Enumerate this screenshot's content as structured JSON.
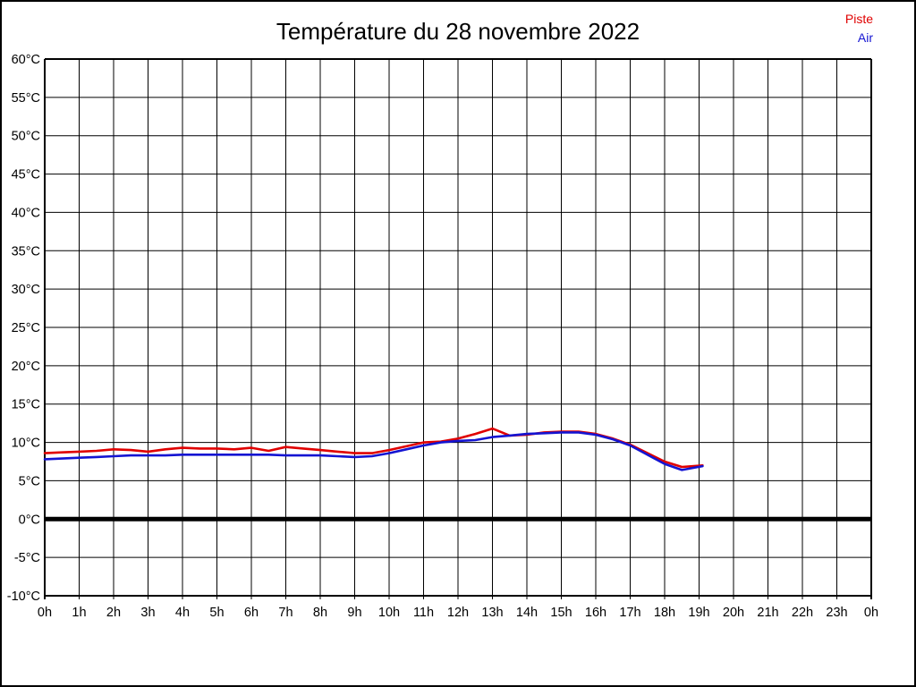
{
  "title": "Température du 28 novembre 2022",
  "legend": [
    {
      "label": "Piste",
      "color": "#e00000"
    },
    {
      "label": "Air",
      "color": "#1414d2"
    }
  ],
  "colors": {
    "background": "#ffffff",
    "grid": "#000000",
    "zero_line": "#000000",
    "text": "#000000"
  },
  "chart_data": {
    "type": "line",
    "title": "Température du 28 novembre 2022",
    "xlabel": "",
    "ylabel": "",
    "xlim": [
      0,
      24
    ],
    "ylim": [
      -10,
      60
    ],
    "grid": true,
    "zero_line_value": 0,
    "legend_position": "top-right",
    "x_ticks": [
      {
        "v": 0,
        "label": "0h"
      },
      {
        "v": 1,
        "label": "1h"
      },
      {
        "v": 2,
        "label": "2h"
      },
      {
        "v": 3,
        "label": "3h"
      },
      {
        "v": 4,
        "label": "4h"
      },
      {
        "v": 5,
        "label": "5h"
      },
      {
        "v": 6,
        "label": "6h"
      },
      {
        "v": 7,
        "label": "7h"
      },
      {
        "v": 8,
        "label": "8h"
      },
      {
        "v": 9,
        "label": "9h"
      },
      {
        "v": 10,
        "label": "10h"
      },
      {
        "v": 11,
        "label": "11h"
      },
      {
        "v": 12,
        "label": "12h"
      },
      {
        "v": 13,
        "label": "13h"
      },
      {
        "v": 14,
        "label": "14h"
      },
      {
        "v": 15,
        "label": "15h"
      },
      {
        "v": 16,
        "label": "16h"
      },
      {
        "v": 17,
        "label": "17h"
      },
      {
        "v": 18,
        "label": "18h"
      },
      {
        "v": 19,
        "label": "19h"
      },
      {
        "v": 20,
        "label": "20h"
      },
      {
        "v": 21,
        "label": "21h"
      },
      {
        "v": 22,
        "label": "22h"
      },
      {
        "v": 23,
        "label": "23h"
      },
      {
        "v": 24,
        "label": "0h"
      }
    ],
    "y_ticks": [
      {
        "v": 60,
        "label": "60°C"
      },
      {
        "v": 55,
        "label": "55°C"
      },
      {
        "v": 50,
        "label": "50°C"
      },
      {
        "v": 45,
        "label": "45°C"
      },
      {
        "v": 40,
        "label": "40°C"
      },
      {
        "v": 35,
        "label": "35°C"
      },
      {
        "v": 30,
        "label": "30°C"
      },
      {
        "v": 25,
        "label": "25°C"
      },
      {
        "v": 20,
        "label": "20°C"
      },
      {
        "v": 15,
        "label": "15°C"
      },
      {
        "v": 10,
        "label": "10°C"
      },
      {
        "v": 5,
        "label": "5°C"
      },
      {
        "v": 0,
        "label": "0°C"
      },
      {
        "v": -5,
        "label": "-5°C"
      },
      {
        "v": -10,
        "label": "-10°C"
      }
    ],
    "series": [
      {
        "name": "Piste",
        "color": "#e00000",
        "x": [
          0,
          0.5,
          1,
          1.5,
          2,
          2.5,
          3,
          3.5,
          4,
          4.5,
          5,
          5.5,
          6,
          6.5,
          7,
          7.5,
          8,
          8.5,
          9,
          9.5,
          10,
          10.5,
          11,
          11.5,
          12,
          12.5,
          13,
          13.5,
          14,
          14.5,
          15,
          15.5,
          16,
          16.5,
          17,
          17.5,
          18,
          18.5,
          19.1
        ],
        "y": [
          8.6,
          8.7,
          8.8,
          8.9,
          9.1,
          9.0,
          8.8,
          9.1,
          9.3,
          9.2,
          9.2,
          9.1,
          9.3,
          8.9,
          9.4,
          9.2,
          9.0,
          8.8,
          8.6,
          8.6,
          9.0,
          9.5,
          10.0,
          10.1,
          10.5,
          11.1,
          11.8,
          10.9,
          11.0,
          11.3,
          11.4,
          11.4,
          11.1,
          10.5,
          9.7,
          8.6,
          7.5,
          6.8,
          7.0
        ]
      },
      {
        "name": "Air",
        "color": "#1414d2",
        "x": [
          0,
          0.5,
          1,
          1.5,
          2,
          2.5,
          3,
          3.5,
          4,
          4.5,
          5,
          5.5,
          6,
          6.5,
          7,
          7.5,
          8,
          8.5,
          9,
          9.5,
          10,
          10.5,
          11,
          11.5,
          12,
          12.5,
          13,
          13.5,
          14,
          14.5,
          15,
          15.5,
          16,
          16.5,
          17,
          17.5,
          18,
          18.5,
          19.1
        ],
        "y": [
          7.8,
          7.9,
          8.0,
          8.1,
          8.2,
          8.3,
          8.3,
          8.3,
          8.4,
          8.4,
          8.4,
          8.4,
          8.4,
          8.4,
          8.3,
          8.3,
          8.3,
          8.2,
          8.1,
          8.2,
          8.6,
          9.1,
          9.6,
          10.0,
          10.2,
          10.3,
          10.7,
          10.9,
          11.1,
          11.2,
          11.3,
          11.3,
          11.0,
          10.4,
          9.6,
          8.4,
          7.2,
          6.4,
          6.9
        ]
      }
    ]
  }
}
